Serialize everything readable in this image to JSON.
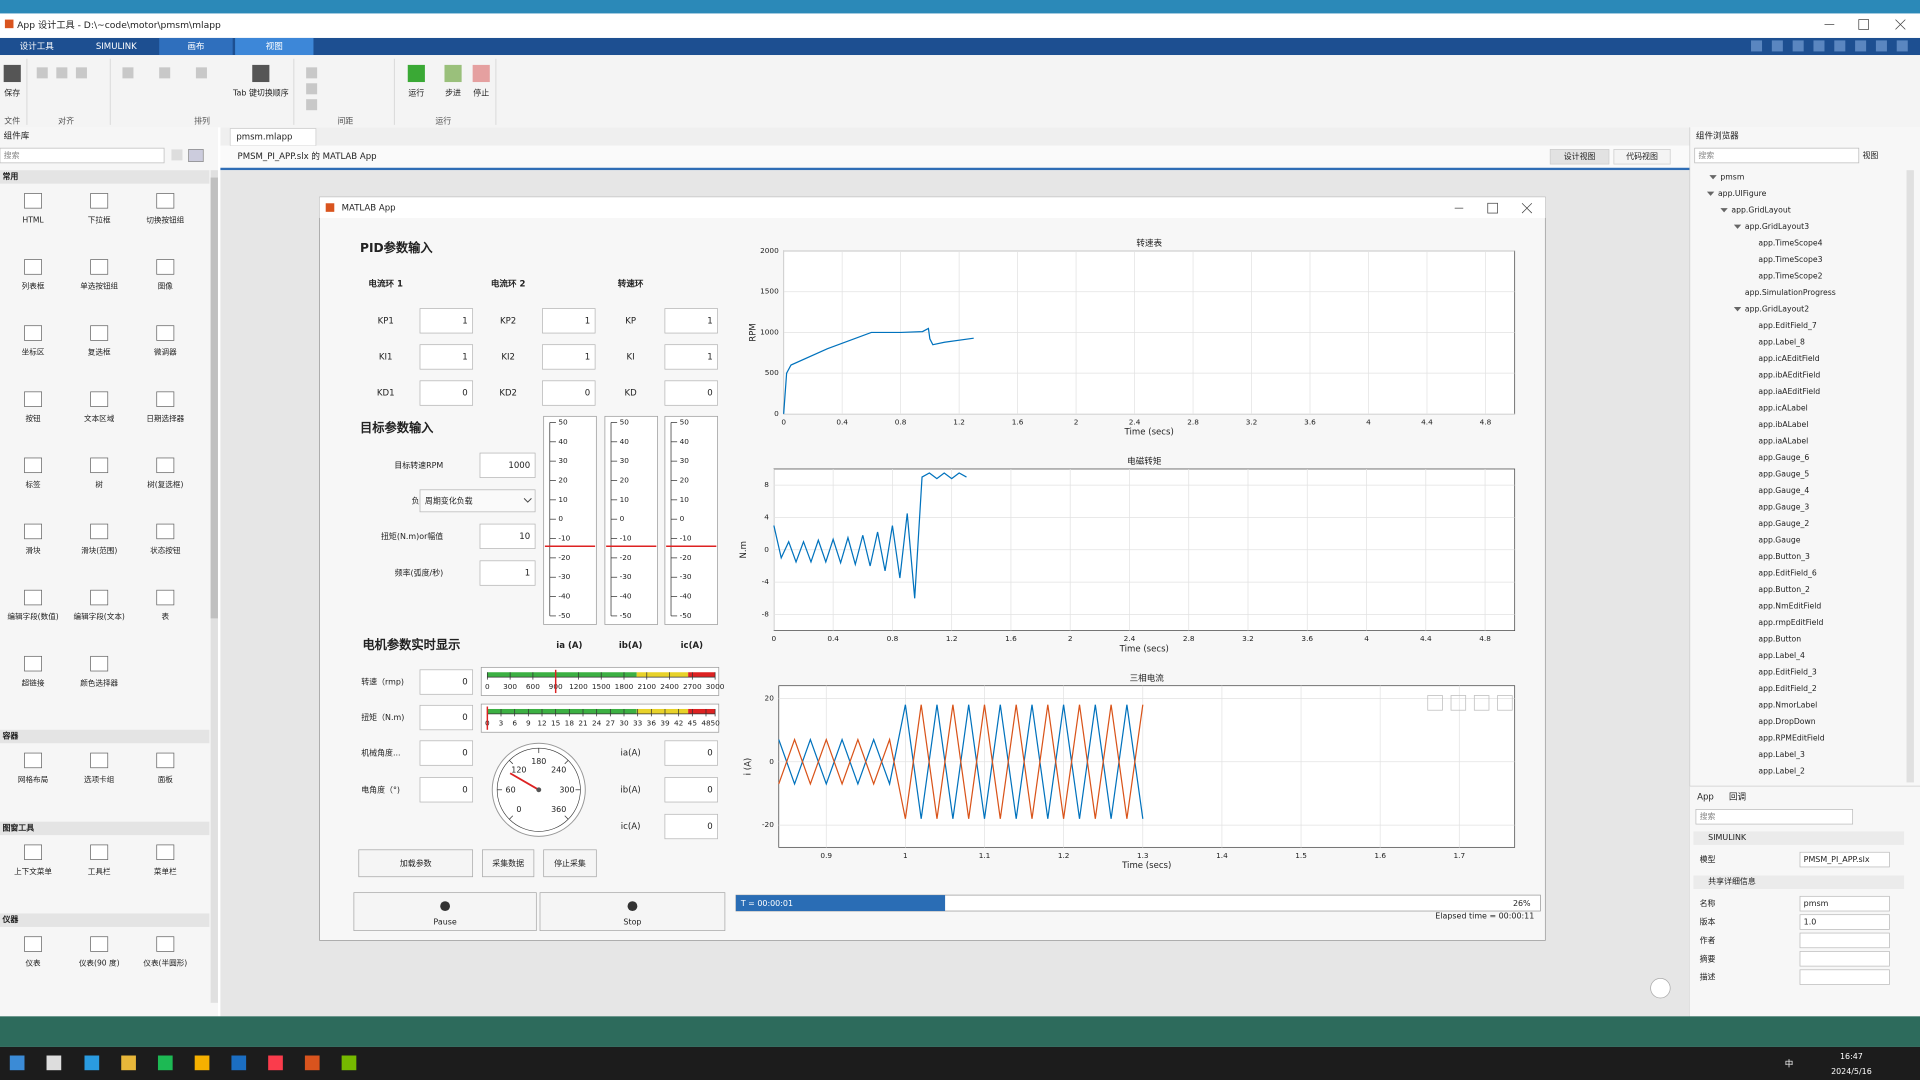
{
  "window": {
    "title": "App 设计工具 - D:\\~code\\motor\\pmsm\\mlapp"
  },
  "ribbon": {
    "tabs": [
      "设计工具",
      "SIMULINK",
      "画布",
      "视图"
    ],
    "buttons": [
      "保存",
      "Tab 键切换顺序",
      "运行",
      "步进",
      "停止"
    ],
    "groups": [
      "文件",
      "对齐",
      "排列",
      "间距",
      "运行"
    ]
  },
  "library": {
    "title": "组件库",
    "search": "搜索",
    "sections": [
      {
        "name": "常用",
        "items": [
          "HTML",
          "下拉框",
          "切换按钮组",
          "列表框",
          "单选按钮组",
          "图像",
          "坐标区",
          "复选框",
          "微调器",
          "按钮",
          "文本区域",
          "日期选择器",
          "标签",
          "树",
          "树(复选框)",
          "滑块",
          "滑块(范围)",
          "状态按钮",
          "编辑字段(数值)",
          "编辑字段(文本)",
          "表",
          "超链接",
          "颜色选择器"
        ]
      },
      {
        "name": "容器",
        "items": [
          "网格布局",
          "选项卡组",
          "面板"
        ]
      },
      {
        "name": "图窗工具",
        "items": [
          "上下文菜单",
          "工具栏",
          "菜单栏"
        ]
      },
      {
        "name": "仪器",
        "items": [
          "仪表",
          "仪表(90 度)",
          "仪表(半圆形)"
        ]
      }
    ]
  },
  "editor": {
    "tab": "pmsm.mlapp",
    "caption": "PMSM_PI_APP.slx 的 MATLAB App",
    "views": [
      "设计视图",
      "代码视图"
    ]
  },
  "app": {
    "title": "MATLAB App",
    "pid": {
      "heading": "PID参数输入",
      "columns": [
        {
          "name": "电流环 1",
          "fields": [
            {
              "label": "KP1",
              "value": 1
            },
            {
              "label": "KI1",
              "value": 1
            },
            {
              "label": "KD1",
              "value": 0
            }
          ]
        },
        {
          "name": "电流环 2",
          "fields": [
            {
              "label": "KP2",
              "value": 1
            },
            {
              "label": "KI2",
              "value": 1
            },
            {
              "label": "KD2",
              "value": 0
            }
          ]
        },
        {
          "name": "转速环",
          "fields": [
            {
              "label": "KP",
              "value": 1
            },
            {
              "label": "KI",
              "value": 1
            },
            {
              "label": "KD",
              "value": 0
            }
          ]
        }
      ]
    },
    "target": {
      "heading": "目标参数输入",
      "fields": [
        {
          "label": "目标转速RPM",
          "value": 1000
        },
        {
          "label": "负载类型",
          "value": "周期变化负载"
        },
        {
          "label": "扭矩(N.m)or幅值",
          "value": 10
        },
        {
          "label": "频率(弧度/秒)",
          "value": 1
        }
      ]
    },
    "vgauges": {
      "labels": [
        "ia (A)",
        "ib(A)",
        "ic(A)"
      ],
      "lim": [
        -50,
        50
      ],
      "ticks": [
        50,
        40,
        30,
        20,
        10,
        0,
        -10,
        -20,
        -30,
        -40,
        -50
      ],
      "values": [
        -14,
        -14,
        -14
      ]
    },
    "monitor": {
      "heading": "电机参数实时显示",
      "fields": [
        {
          "label": "转速（rmp)",
          "value": 0
        },
        {
          "label": "扭矩（N.m)",
          "value": 0
        },
        {
          "label": "机械角度...",
          "value": 0
        },
        {
          "label": "电角度（°)",
          "value": 0
        }
      ],
      "currents": [
        {
          "label": "ia(A)",
          "value": 0
        },
        {
          "label": "ib(A)",
          "value": 0
        },
        {
          "label": "ic(A)",
          "value": 0
        }
      ]
    },
    "speed_gauge": {
      "lim": [
        0,
        3000
      ],
      "ticks": [
        0,
        300,
        600,
        900,
        1200,
        1500,
        1800,
        2100,
        2400,
        2700,
        3000
      ],
      "value": 900
    },
    "torque_gauge": {
      "lim": [
        0,
        50
      ],
      "ticks": [
        0,
        3,
        6,
        9,
        12,
        15,
        18,
        21,
        24,
        27,
        30,
        33,
        36,
        39,
        42,
        45,
        48,
        50
      ],
      "value": 0
    },
    "dial": {
      "lim": [
        0,
        360
      ],
      "ticks": [
        0,
        60,
        120,
        180,
        240,
        300,
        360
      ],
      "value": 100
    },
    "buttons": [
      "加载参数",
      "采集数据",
      "停止采集"
    ],
    "controls": [
      "Pause",
      "Stop"
    ],
    "progress": {
      "label": "T = 00:00:01",
      "value": 26,
      "value_label": "26%",
      "elapsed": "Elapsed time = 00:00:11"
    },
    "plots": [
      {
        "type": "line",
        "title": "转速表",
        "xlabel": "Time (secs)",
        "ylabel": "RPM",
        "xlim": [
          0,
          5
        ],
        "ylim": [
          0,
          2000
        ],
        "xticks": [
          0,
          0.4,
          0.8,
          1.2,
          1.6,
          2,
          2.4,
          2.8,
          3.2,
          3.6,
          4,
          4.4,
          4.8
        ],
        "yticks": [
          0,
          500,
          1000,
          1500,
          2000
        ],
        "x": [
          0,
          0.02,
          0.05,
          0.3,
          0.6,
          0.8,
          0.95,
          0.99,
          1,
          1.02,
          1.1,
          1.3
        ],
        "series": [
          {
            "color": "#0072bd",
            "values": [
              0,
              500,
              600,
              800,
              1000,
              1000,
              1010,
              1050,
              920,
              850,
              880,
              930
            ]
          }
        ]
      },
      {
        "type": "line",
        "title": "电磁转矩",
        "xlabel": "Time (secs)",
        "ylabel": "N.m",
        "xlim": [
          0,
          5
        ],
        "ylim": [
          -10,
          10
        ],
        "xticks": [
          0,
          0.4,
          0.8,
          1.2,
          1.6,
          2,
          2.4,
          2.8,
          3.2,
          3.6,
          4,
          4.4,
          4.8
        ],
        "yticks": [
          8,
          4,
          0,
          -4,
          -8
        ],
        "x": [
          0,
          0.05,
          0.1,
          0.15,
          0.2,
          0.25,
          0.3,
          0.35,
          0.4,
          0.45,
          0.5,
          0.55,
          0.6,
          0.65,
          0.7,
          0.75,
          0.8,
          0.85,
          0.9,
          0.95,
          1,
          1.05,
          1.1,
          1.15,
          1.2,
          1.25,
          1.3
        ],
        "series": [
          {
            "color": "#0072bd",
            "values": [
              3,
              -1,
              1,
              -1.5,
              1,
              -1.5,
              1.2,
              -1.5,
              1.3,
              -1.6,
              1.5,
              -1.8,
              1.8,
              -2,
              2.2,
              -2.6,
              3,
              -3.5,
              4.5,
              -6,
              9,
              9.5,
              8.8,
              9.5,
              8.8,
              9.5,
              9
            ]
          }
        ]
      },
      {
        "type": "line",
        "title": "三相电流",
        "xlabel": "Time (secs)",
        "ylabel": "i (A)",
        "xlim": [
          0.84,
          1.77
        ],
        "ylim": [
          -27,
          24
        ],
        "xticks": [
          0.9,
          1,
          1.1,
          1.2,
          1.3,
          1.4,
          1.5,
          1.6,
          1.7
        ],
        "yticks": [
          20,
          0,
          -20
        ],
        "x": [
          0.84,
          0.86,
          0.88,
          0.9,
          0.92,
          0.94,
          0.96,
          0.98,
          1,
          1.02,
          1.04,
          1.06,
          1.08,
          1.1,
          1.12,
          1.14,
          1.16,
          1.18,
          1.2,
          1.22,
          1.24,
          1.26,
          1.28,
          1.3
        ],
        "series": [
          {
            "color": "#0072bd",
            "values": [
              7,
              -7,
              7,
              -7,
              7,
              -7,
              7,
              -7,
              18,
              -18,
              18,
              -18,
              18,
              -18,
              18,
              -18,
              18,
              -18,
              18,
              -18,
              18,
              -18,
              18,
              -18
            ]
          },
          {
            "color": "#d95319",
            "values": [
              -7,
              7,
              -7,
              7,
              -7,
              7,
              -7,
              7,
              -18,
              18,
              -18,
              18,
              -18,
              18,
              -18,
              18,
              -18,
              18,
              -18,
              18,
              -18,
              18,
              -18,
              18
            ]
          }
        ]
      }
    ]
  },
  "browser": {
    "title": "组件浏览器",
    "search": "搜索",
    "view": "视图",
    "tree": {
      "label": "pmsm",
      "children": [
        {
          "label": "app.UIFigure",
          "children": [
            {
              "label": "app.GridLayout",
              "children": [
                {
                  "label": "app.GridLayout3",
                  "children": [
                    {
                      "label": "app.TimeScope4"
                    },
                    {
                      "label": "app.TimeScope3"
                    },
                    {
                      "label": "app.TimeScope2"
                    }
                  ]
                },
                {
                  "label": "app.SimulationProgress"
                },
                {
                  "label": "app.GridLayout2",
                  "children": [
                    {
                      "label": "app.EditField_7"
                    },
                    {
                      "label": "app.Label_8"
                    },
                    {
                      "label": "app.icAEditField"
                    },
                    {
                      "label": "app.ibAEditField"
                    },
                    {
                      "label": "app.iaAEditField"
                    },
                    {
                      "label": "app.icALabel"
                    },
                    {
                      "label": "app.ibALabel"
                    },
                    {
                      "label": "app.iaALabel"
                    },
                    {
                      "label": "app.Gauge_6"
                    },
                    {
                      "label": "app.Gauge_5"
                    },
                    {
                      "label": "app.Gauge_4"
                    },
                    {
                      "label": "app.Gauge_3"
                    },
                    {
                      "label": "app.Gauge_2"
                    },
                    {
                      "label": "app.Gauge"
                    },
                    {
                      "label": "app.Button_3"
                    },
                    {
                      "label": "app.EditField_6"
                    },
                    {
                      "label": "app.Button_2"
                    },
                    {
                      "label": "app.NmEditField"
                    },
                    {
                      "label": "app.rmpEditField"
                    },
                    {
                      "label": "app.Button"
                    },
                    {
                      "label": "app.Label_4"
                    },
                    {
                      "label": "app.EditField_3"
                    },
                    {
                      "label": "app.EditField_2"
                    },
                    {
                      "label": "app.NmorLabel"
                    },
                    {
                      "label": "app.DropDown"
                    },
                    {
                      "label": "app.RPMEditField"
                    },
                    {
                      "label": "app.Label_3"
                    },
                    {
                      "label": "app.Label_2"
                    }
                  ]
                }
              ]
            }
          ]
        }
      ]
    }
  },
  "inspector": {
    "tabs": [
      "App",
      "回调"
    ],
    "search": "搜索",
    "sections": [
      {
        "name": "SIMULINK",
        "rows": [
          {
            "label": "模型",
            "value": "PMSM_PI_APP.slx"
          }
        ]
      },
      {
        "name": "共享详细信息",
        "rows": [
          {
            "label": "名称",
            "value": "pmsm"
          },
          {
            "label": "版本",
            "value": "1.0"
          },
          {
            "label": "作者"
          },
          {
            "label": "摘要"
          },
          {
            "label": "描述"
          }
        ]
      }
    ]
  },
  "taskbar": {
    "language": "中",
    "time": "16:47",
    "date": "2024/5/16"
  }
}
